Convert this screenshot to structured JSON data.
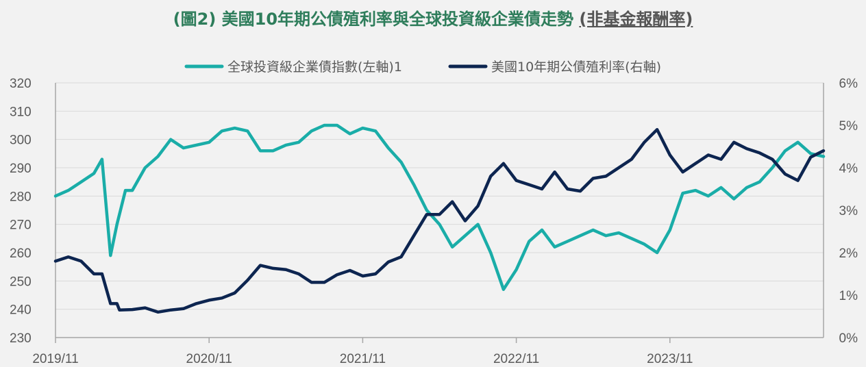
{
  "title": {
    "main": "(圖2) 美國10年期公債殖利率與全球投資級企業債走勢",
    "sub": "(非基金報酬率)"
  },
  "chart_data": {
    "type": "line",
    "x_labels": [
      "2019/11",
      "2020/11",
      "2021/11",
      "2022/11",
      "2023/11"
    ],
    "x_range": [
      "2019/11",
      "2024/11"
    ],
    "grid": "horizontal",
    "legend_position": "top",
    "y_left": {
      "ticks": [
        "320",
        "310",
        "300",
        "290",
        "280",
        "270",
        "260",
        "250",
        "240",
        "230"
      ],
      "range": [
        230,
        320
      ]
    },
    "y_right": {
      "ticks": [
        "6%",
        "5%",
        "4%",
        "3%",
        "2%",
        "1%",
        "0%"
      ],
      "range": [
        0,
        6
      ]
    },
    "series": [
      {
        "name": "全球投資級企業債指數(左軸)1",
        "axis": "left",
        "color": "#1aada8",
        "points": [
          [
            "2019-11",
            280
          ],
          [
            "2019-12",
            282
          ],
          [
            "2020-01",
            285
          ],
          [
            "2020-02",
            288
          ],
          [
            "2020-02-20",
            293
          ],
          [
            "2020-03-10",
            259
          ],
          [
            "2020-03-25",
            270
          ],
          [
            "2020-04-15",
            282
          ],
          [
            "2020-05",
            282
          ],
          [
            "2020-06",
            290
          ],
          [
            "2020-07",
            294
          ],
          [
            "2020-08",
            300
          ],
          [
            "2020-09",
            297
          ],
          [
            "2020-10",
            298
          ],
          [
            "2020-11",
            299
          ],
          [
            "2020-12",
            303
          ],
          [
            "2021-01",
            304
          ],
          [
            "2021-02",
            303
          ],
          [
            "2021-03",
            296
          ],
          [
            "2021-04",
            296
          ],
          [
            "2021-05",
            298
          ],
          [
            "2021-06",
            299
          ],
          [
            "2021-07",
            303
          ],
          [
            "2021-08",
            305
          ],
          [
            "2021-09",
            305
          ],
          [
            "2021-10",
            302
          ],
          [
            "2021-11",
            304
          ],
          [
            "2021-12",
            303
          ],
          [
            "2022-01",
            297
          ],
          [
            "2022-02",
            292
          ],
          [
            "2022-03",
            284
          ],
          [
            "2022-04",
            275
          ],
          [
            "2022-05",
            270
          ],
          [
            "2022-06",
            262
          ],
          [
            "2022-07",
            266
          ],
          [
            "2022-08",
            270
          ],
          [
            "2022-09",
            260
          ],
          [
            "2022-10",
            247
          ],
          [
            "2022-11",
            254
          ],
          [
            "2022-12",
            264
          ],
          [
            "2023-01",
            268
          ],
          [
            "2023-02",
            262
          ],
          [
            "2023-03",
            264
          ],
          [
            "2023-04",
            266
          ],
          [
            "2023-05",
            268
          ],
          [
            "2023-06",
            266
          ],
          [
            "2023-07",
            267
          ],
          [
            "2023-08",
            265
          ],
          [
            "2023-09",
            263
          ],
          [
            "2023-10",
            260
          ],
          [
            "2023-11",
            268
          ],
          [
            "2023-12",
            281
          ],
          [
            "2024-01",
            282
          ],
          [
            "2024-02",
            280
          ],
          [
            "2024-03",
            283
          ],
          [
            "2024-04",
            279
          ],
          [
            "2024-05",
            283
          ],
          [
            "2024-06",
            285
          ],
          [
            "2024-07",
            290
          ],
          [
            "2024-08",
            296
          ],
          [
            "2024-09",
            299
          ],
          [
            "2024-10",
            295
          ],
          [
            "2024-11",
            294
          ]
        ]
      },
      {
        "name": "美國10年期公債殖利率(右軸)",
        "axis": "right",
        "color": "#0d2550",
        "points": [
          [
            "2019-11",
            1.8
          ],
          [
            "2019-12",
            1.9
          ],
          [
            "2020-01",
            1.8
          ],
          [
            "2020-02",
            1.5
          ],
          [
            "2020-02-20",
            1.5
          ],
          [
            "2020-03-10",
            0.8
          ],
          [
            "2020-03-25",
            0.8
          ],
          [
            "2020-04",
            0.65
          ],
          [
            "2020-05",
            0.66
          ],
          [
            "2020-06",
            0.7
          ],
          [
            "2020-07",
            0.6
          ],
          [
            "2020-08",
            0.65
          ],
          [
            "2020-09",
            0.68
          ],
          [
            "2020-10",
            0.8
          ],
          [
            "2020-11",
            0.88
          ],
          [
            "2020-12",
            0.93
          ],
          [
            "2021-01",
            1.05
          ],
          [
            "2021-02",
            1.35
          ],
          [
            "2021-03",
            1.7
          ],
          [
            "2021-04",
            1.63
          ],
          [
            "2021-05",
            1.6
          ],
          [
            "2021-06",
            1.5
          ],
          [
            "2021-07",
            1.3
          ],
          [
            "2021-08",
            1.3
          ],
          [
            "2021-09",
            1.48
          ],
          [
            "2021-10",
            1.58
          ],
          [
            "2021-11",
            1.45
          ],
          [
            "2021-12",
            1.5
          ],
          [
            "2022-01",
            1.78
          ],
          [
            "2022-02",
            1.9
          ],
          [
            "2022-03",
            2.4
          ],
          [
            "2022-04",
            2.9
          ],
          [
            "2022-05",
            2.9
          ],
          [
            "2022-06",
            3.2
          ],
          [
            "2022-07",
            2.75
          ],
          [
            "2022-08",
            3.1
          ],
          [
            "2022-09",
            3.8
          ],
          [
            "2022-10",
            4.1
          ],
          [
            "2022-11",
            3.7
          ],
          [
            "2022-12",
            3.6
          ],
          [
            "2023-01",
            3.5
          ],
          [
            "2023-02",
            3.9
          ],
          [
            "2023-03",
            3.5
          ],
          [
            "2023-04",
            3.45
          ],
          [
            "2023-05",
            3.75
          ],
          [
            "2023-06",
            3.8
          ],
          [
            "2023-07",
            4.0
          ],
          [
            "2023-08",
            4.2
          ],
          [
            "2023-09",
            4.6
          ],
          [
            "2023-10",
            4.9
          ],
          [
            "2023-11",
            4.3
          ],
          [
            "2023-12",
            3.9
          ],
          [
            "2024-01",
            4.1
          ],
          [
            "2024-02",
            4.3
          ],
          [
            "2024-03",
            4.2
          ],
          [
            "2024-04",
            4.6
          ],
          [
            "2024-05",
            4.45
          ],
          [
            "2024-06",
            4.35
          ],
          [
            "2024-07",
            4.2
          ],
          [
            "2024-08",
            3.85
          ],
          [
            "2024-09",
            3.7
          ],
          [
            "2024-10",
            4.25
          ],
          [
            "2024-11",
            4.4
          ]
        ]
      }
    ]
  }
}
